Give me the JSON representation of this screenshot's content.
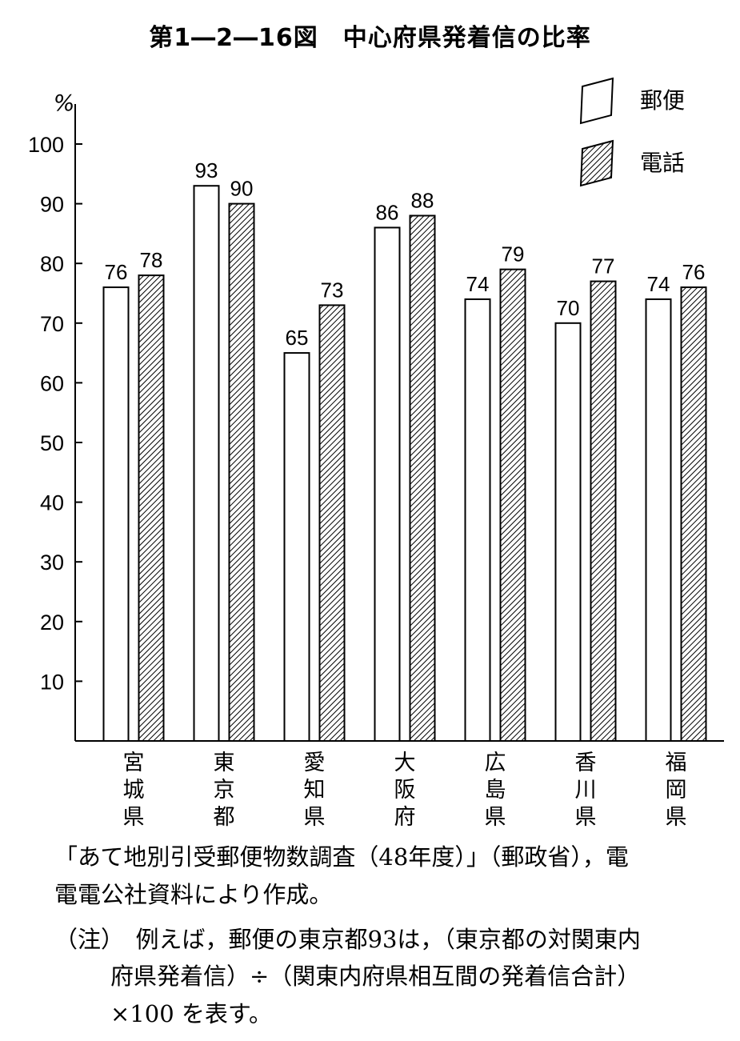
{
  "figure": {
    "title": "第1―2―16図　中心府県発着信の比率"
  },
  "chart_data": {
    "type": "bar",
    "title": "第1―2―16図　中心府県発着信の比率",
    "ylabel": "%",
    "ylim": [
      0,
      100
    ],
    "yticks": [
      10,
      20,
      30,
      40,
      50,
      60,
      70,
      80,
      90,
      100
    ],
    "categories": [
      "宮城県",
      "東京都",
      "愛知県",
      "大阪府",
      "広島県",
      "香川県",
      "福岡県"
    ],
    "series": [
      {
        "name": "郵便",
        "values": [
          76,
          93,
          65,
          86,
          74,
          70,
          74
        ],
        "fill": "#ffffff",
        "pattern": "none"
      },
      {
        "name": "電話",
        "values": [
          78,
          90,
          73,
          88,
          79,
          77,
          76
        ],
        "fill": "#ffffff",
        "pattern": "diagonal-hatch"
      }
    ],
    "legend_position": "top-right",
    "grid": false
  },
  "notes": {
    "source_line1": "「あて地別引受郵便物数調査（48年度）」（郵政省），電",
    "source_line2": "電電公社資料により作成。",
    "note_line1": "（注）　例えば，郵便の東京都93は，（東京都の対関東内",
    "note_line2": "府県発着信）÷（関東内府県相互間の発着信合計）",
    "note_line3": "×100 を表す。"
  }
}
